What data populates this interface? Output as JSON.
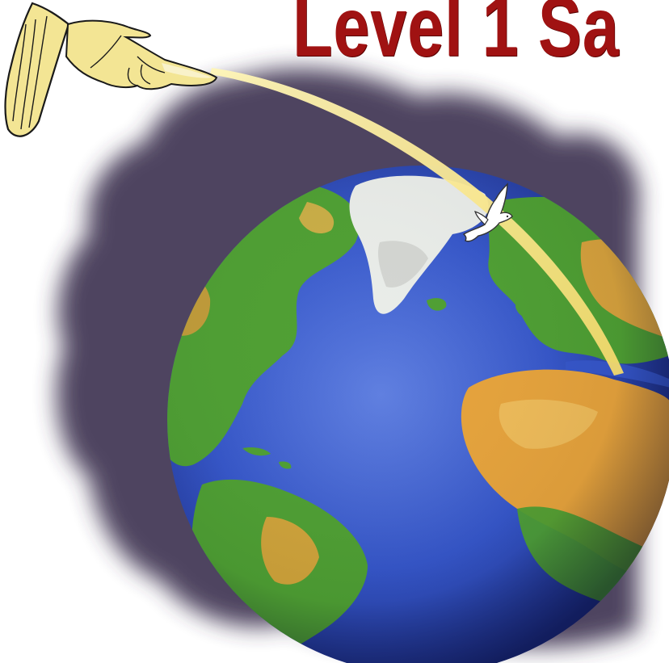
{
  "title": {
    "text": "Level 1 Sa"
  },
  "colors": {
    "title": "#a01212",
    "shadow": "#3f3552",
    "ocean": "#3556c9",
    "land_green": "#4e9f32",
    "desert": "#e6a33b",
    "ice": "#e9ece8",
    "beam": "#f4e28a",
    "hand": "#f3e594"
  },
  "icons": {
    "hand": "pointing-hand-icon",
    "dove": "dove-icon",
    "globe": "earth-globe"
  }
}
